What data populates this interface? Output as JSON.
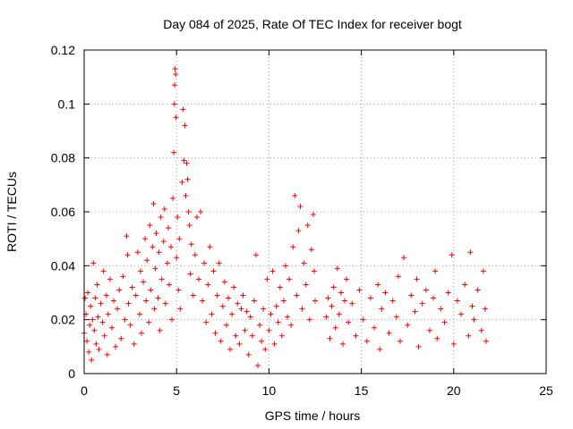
{
  "chart_data": {
    "type": "scatter",
    "title": "Day 084 of 2025, Rate Of TEC Index for receiver bogt",
    "xlabel": "GPS time / hours",
    "ylabel": "ROTI / TECUs",
    "xlim": [
      0,
      25
    ],
    "ylim": [
      0,
      0.12
    ],
    "xticks": [
      "0",
      "5",
      "10",
      "15",
      "20",
      "25"
    ],
    "yticks": [
      "0",
      "0.02",
      "0.04",
      "0.06",
      "0.08",
      "0.1",
      "0.12"
    ],
    "grid": true,
    "marker": "+",
    "color": "#ff0000",
    "series": [
      {
        "points": [
          [
            0.0,
            0.015
          ],
          [
            0.05,
            0.028
          ],
          [
            0.1,
            0.022
          ],
          [
            0.15,
            0.012
          ],
          [
            0.2,
            0.03
          ],
          [
            0.25,
            0.008
          ],
          [
            0.3,
            0.018
          ],
          [
            0.35,
            0.025
          ],
          [
            0.4,
            0.005
          ],
          [
            0.45,
            0.02
          ],
          [
            0.5,
            0.041
          ],
          [
            0.55,
            0.016
          ],
          [
            0.6,
            0.028
          ],
          [
            0.65,
            0.011
          ],
          [
            0.7,
            0.033
          ],
          [
            0.75,
            0.021
          ],
          [
            0.8,
            0.009
          ],
          [
            0.9,
            0.026
          ],
          [
            1.0,
            0.019
          ],
          [
            1.05,
            0.038
          ],
          [
            1.1,
            0.014
          ],
          [
            1.2,
            0.029
          ],
          [
            1.25,
            0.007
          ],
          [
            1.3,
            0.022
          ],
          [
            1.4,
            0.035
          ],
          [
            1.5,
            0.017
          ],
          [
            1.6,
            0.027
          ],
          [
            1.7,
            0.01
          ],
          [
            1.8,
            0.024
          ],
          [
            1.9,
            0.031
          ],
          [
            2.0,
            0.013
          ],
          [
            2.1,
            0.036
          ],
          [
            2.2,
            0.02
          ],
          [
            2.3,
            0.051
          ],
          [
            2.35,
            0.044
          ],
          [
            2.4,
            0.026
          ],
          [
            2.5,
            0.018
          ],
          [
            2.6,
            0.032
          ],
          [
            2.7,
            0.011
          ],
          [
            2.8,
            0.029
          ],
          [
            2.9,
            0.045
          ],
          [
            3.0,
            0.022
          ],
          [
            3.05,
            0.038
          ],
          [
            3.1,
            0.015
          ],
          [
            3.2,
            0.034
          ],
          [
            3.3,
            0.05
          ],
          [
            3.35,
            0.027
          ],
          [
            3.4,
            0.042
          ],
          [
            3.5,
            0.019
          ],
          [
            3.55,
            0.055
          ],
          [
            3.6,
            0.031
          ],
          [
            3.7,
            0.047
          ],
          [
            3.75,
            0.063
          ],
          [
            3.8,
            0.024
          ],
          [
            3.85,
            0.039
          ],
          [
            3.9,
            0.052
          ],
          [
            4.0,
            0.028
          ],
          [
            4.05,
            0.045
          ],
          [
            4.1,
            0.016
          ],
          [
            4.15,
            0.058
          ],
          [
            4.2,
            0.035
          ],
          [
            4.3,
            0.049
          ],
          [
            4.35,
            0.061
          ],
          [
            4.4,
            0.026
          ],
          [
            4.5,
            0.041
          ],
          [
            4.55,
            0.054
          ],
          [
            4.6,
            0.033
          ],
          [
            4.7,
            0.047
          ],
          [
            4.75,
            0.02
          ],
          [
            4.8,
            0.065
          ],
          [
            4.85,
            0.082
          ],
          [
            4.88,
            0.1
          ],
          [
            4.9,
            0.107
          ],
          [
            4.92,
            0.113
          ],
          [
            4.95,
            0.111
          ],
          [
            4.97,
            0.095
          ],
          [
            5.0,
            0.043
          ],
          [
            5.05,
            0.058
          ],
          [
            5.1,
            0.031
          ],
          [
            5.15,
            0.05
          ],
          [
            5.2,
            0.024
          ],
          [
            5.3,
            0.071
          ],
          [
            5.35,
            0.098
          ],
          [
            5.4,
            0.079
          ],
          [
            5.45,
            0.092
          ],
          [
            5.5,
            0.066
          ],
          [
            5.55,
            0.078
          ],
          [
            5.6,
            0.072
          ],
          [
            5.65,
            0.06
          ],
          [
            5.7,
            0.055
          ],
          [
            5.75,
            0.037
          ],
          [
            5.8,
            0.048
          ],
          [
            5.9,
            0.029
          ],
          [
            6.0,
            0.044
          ],
          [
            6.1,
            0.058
          ],
          [
            6.2,
            0.035
          ],
          [
            6.3,
            0.06
          ],
          [
            6.4,
            0.027
          ],
          [
            6.5,
            0.041
          ],
          [
            6.6,
            0.019
          ],
          [
            6.7,
            0.033
          ],
          [
            6.8,
            0.047
          ],
          [
            6.9,
            0.022
          ],
          [
            7.0,
            0.038
          ],
          [
            7.1,
            0.015
          ],
          [
            7.2,
            0.029
          ],
          [
            7.3,
            0.041
          ],
          [
            7.4,
            0.012
          ],
          [
            7.5,
            0.025
          ],
          [
            7.6,
            0.034
          ],
          [
            7.7,
            0.018
          ],
          [
            7.8,
            0.028
          ],
          [
            7.9,
            0.009
          ],
          [
            8.0,
            0.022
          ],
          [
            8.1,
            0.032
          ],
          [
            8.2,
            0.014
          ],
          [
            8.3,
            0.026
          ],
          [
            8.4,
            0.011
          ],
          [
            8.5,
            0.024
          ],
          [
            8.6,
            0.029
          ],
          [
            8.7,
            0.016
          ],
          [
            8.8,
            0.023
          ],
          [
            8.9,
            0.007
          ],
          [
            9.0,
            0.021
          ],
          [
            9.1,
            0.014
          ],
          [
            9.2,
            0.027
          ],
          [
            9.3,
            0.044
          ],
          [
            9.4,
            0.003
          ],
          [
            9.5,
            0.018
          ],
          [
            9.6,
            0.012
          ],
          [
            9.7,
            0.024
          ],
          [
            9.8,
            0.009
          ],
          [
            9.9,
            0.035
          ],
          [
            10.0,
            0.016
          ],
          [
            10.1,
            0.022
          ],
          [
            10.2,
            0.038
          ],
          [
            10.3,
            0.011
          ],
          [
            10.4,
            0.025
          ],
          [
            10.5,
            0.019
          ],
          [
            10.6,
            0.032
          ],
          [
            10.7,
            0.014
          ],
          [
            10.8,
            0.027
          ],
          [
            10.9,
            0.04
          ],
          [
            11.0,
            0.021
          ],
          [
            11.1,
            0.035
          ],
          [
            11.2,
            0.018
          ],
          [
            11.3,
            0.047
          ],
          [
            11.4,
            0.066
          ],
          [
            11.5,
            0.029
          ],
          [
            11.6,
            0.053
          ],
          [
            11.7,
            0.062
          ],
          [
            11.8,
            0.024
          ],
          [
            11.9,
            0.041
          ],
          [
            12.0,
            0.033
          ],
          [
            12.1,
            0.055
          ],
          [
            12.2,
            0.02
          ],
          [
            12.3,
            0.046
          ],
          [
            12.4,
            0.059
          ],
          [
            12.45,
            0.038
          ],
          [
            12.5,
            0.027
          ],
          [
            13.1,
            0.021
          ],
          [
            13.2,
            0.028
          ],
          [
            13.3,
            0.013
          ],
          [
            13.4,
            0.025
          ],
          [
            13.5,
            0.032
          ],
          [
            13.6,
            0.017
          ],
          [
            13.7,
            0.039
          ],
          [
            13.8,
            0.022
          ],
          [
            13.9,
            0.03
          ],
          [
            14.0,
            0.011
          ],
          [
            14.1,
            0.027
          ],
          [
            14.2,
            0.035
          ],
          [
            14.3,
            0.019
          ],
          [
            14.5,
            0.026
          ],
          [
            14.7,
            0.014
          ],
          [
            14.9,
            0.031
          ],
          [
            15.1,
            0.02
          ],
          [
            15.3,
            0.012
          ],
          [
            15.5,
            0.028
          ],
          [
            15.7,
            0.017
          ],
          [
            15.9,
            0.033
          ],
          [
            16.0,
            0.009
          ],
          [
            16.1,
            0.024
          ],
          [
            16.3,
            0.03
          ],
          [
            16.5,
            0.015
          ],
          [
            16.7,
            0.027
          ],
          [
            16.9,
            0.021
          ],
          [
            17.0,
            0.036
          ],
          [
            17.1,
            0.012
          ],
          [
            17.3,
            0.043
          ],
          [
            17.5,
            0.018
          ],
          [
            17.7,
            0.029
          ],
          [
            17.9,
            0.023
          ],
          [
            18.0,
            0.035
          ],
          [
            18.1,
            0.01
          ],
          [
            18.3,
            0.026
          ],
          [
            18.5,
            0.031
          ],
          [
            18.7,
            0.016
          ],
          [
            18.9,
            0.028
          ],
          [
            19.0,
            0.038
          ],
          [
            19.1,
            0.013
          ],
          [
            19.3,
            0.024
          ],
          [
            19.5,
            0.019
          ],
          [
            19.7,
            0.03
          ],
          [
            19.9,
            0.044
          ],
          [
            20.0,
            0.011
          ],
          [
            20.2,
            0.027
          ],
          [
            20.4,
            0.022
          ],
          [
            20.6,
            0.033
          ],
          [
            20.8,
            0.014
          ],
          [
            20.9,
            0.045
          ],
          [
            21.0,
            0.025
          ],
          [
            21.1,
            0.02
          ],
          [
            21.3,
            0.031
          ],
          [
            21.5,
            0.016
          ],
          [
            21.6,
            0.038
          ],
          [
            21.7,
            0.024
          ],
          [
            21.75,
            0.012
          ]
        ]
      }
    ]
  }
}
